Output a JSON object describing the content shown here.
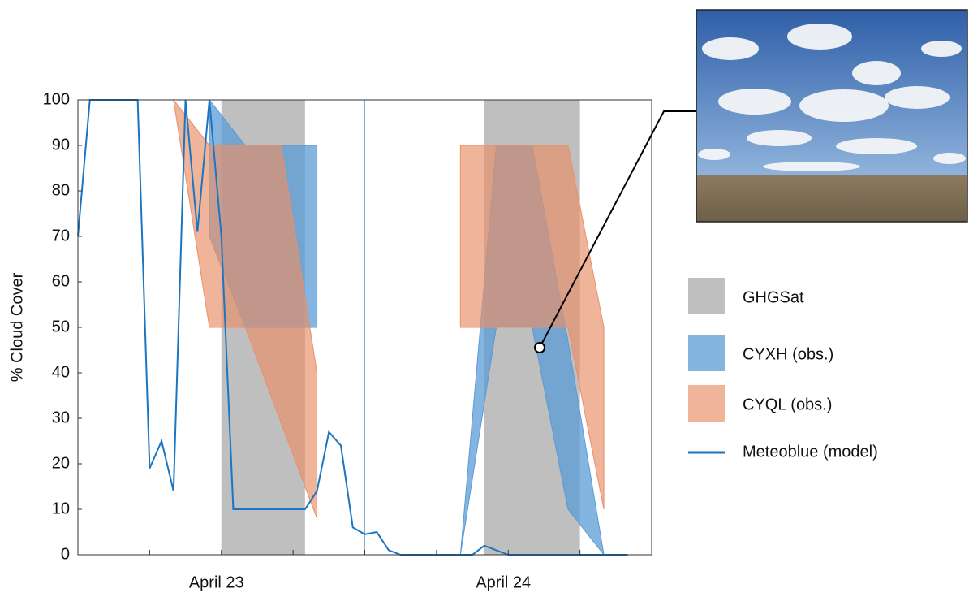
{
  "chart_data": {
    "type": "band-line",
    "ylabel": "% Cloud Cover",
    "xlim": [
      0,
      24
    ],
    "xticks": [
      0,
      3,
      6,
      9,
      12,
      15,
      18,
      21,
      24
    ],
    "ylim": [
      0,
      100
    ],
    "yticks": [
      0,
      10,
      20,
      30,
      40,
      50,
      60,
      70,
      80,
      90,
      100
    ],
    "x_group_labels": [
      "April 23",
      "April 24"
    ],
    "day_divider": 12,
    "ghgsat": {
      "name": "GHGSat",
      "color": "#bfbfbf",
      "intervals": [
        [
          6,
          9.5
        ],
        [
          17,
          21
        ]
      ]
    },
    "bands": [
      {
        "name": "CYXH (obs.)",
        "color": "#5b9bd5",
        "pieces": [
          {
            "x": [
              5.5,
              7,
              10
            ],
            "high": [
              100,
              90,
              90
            ],
            "low": [
              70,
              50,
              50
            ]
          },
          {
            "x": [
              16,
              17.5,
              19,
              20.5,
              22
            ],
            "high": [
              0,
              90,
              90,
              47,
              0
            ],
            "low": [
              0,
              50,
              50,
              10,
              0
            ]
          }
        ]
      },
      {
        "name": "CYQL (obs.)",
        "color": "#e8906a",
        "pieces": [
          {
            "x": [
              4,
              5.5,
              7,
              8.5,
              10
            ],
            "high": [
              100,
              90,
              90,
              90,
              40
            ],
            "low": [
              100,
              50,
              50,
              29,
              8
            ]
          },
          {
            "x": [
              16,
              20.5,
              22
            ],
            "high": [
              90,
              90,
              50
            ],
            "low": [
              50,
              50,
              10
            ]
          }
        ]
      }
    ],
    "series": [
      {
        "name": "Meteoblue (model)",
        "color": "#1a75c2",
        "x": [
          0,
          0.5,
          2.5,
          3,
          3.5,
          4,
          4.5,
          5,
          5.5,
          6,
          6.5,
          9.5,
          10,
          10.5,
          11,
          11.5,
          12,
          12.5,
          13,
          13.5,
          16.5,
          17,
          18,
          23
        ],
        "values": [
          70,
          100,
          100,
          19,
          25,
          14,
          100,
          71,
          100,
          70,
          10,
          10,
          14,
          27,
          24,
          6,
          4.5,
          5,
          1,
          0,
          0,
          2,
          0,
          0
        ]
      }
    ]
  }
}
